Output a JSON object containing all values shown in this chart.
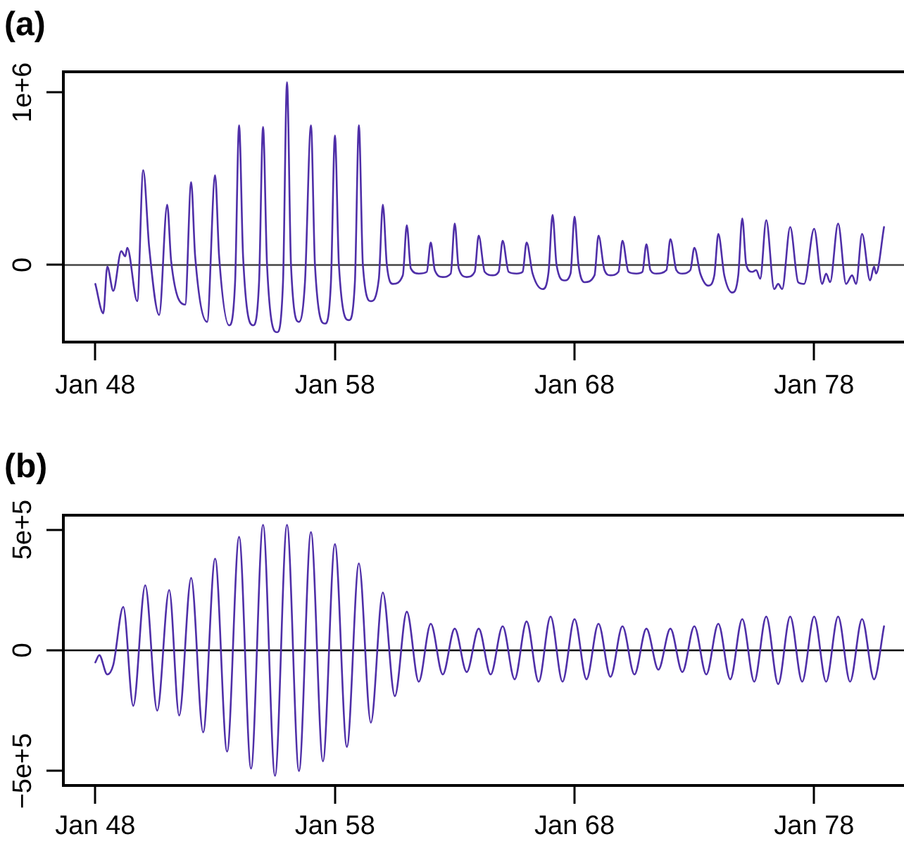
{
  "chart_data": [
    {
      "type": "line",
      "title": "(a)",
      "color": "#4f2fa8",
      "marker": "none",
      "x": [
        "1948-01",
        "1948-05",
        "1948-07",
        "1948-10",
        "1949-02",
        "1949-04",
        "1949-05",
        "1949-10",
        "1950-01",
        "1950-04",
        "1950-09",
        "1951-01",
        "1951-03",
        "1951-10",
        "1952-01",
        "1952-03",
        "1952-09",
        "1953-01",
        "1953-03",
        "1953-08",
        "1953-11",
        "1954-01",
        "1954-03",
        "1954-08",
        "1954-11",
        "1955-01",
        "1955-03",
        "1955-08",
        "1955-11",
        "1956-01",
        "1956-03",
        "1956-07",
        "1956-10",
        "1957-01",
        "1957-03",
        "1957-08",
        "1957-11",
        "1958-01",
        "1958-03",
        "1958-08",
        "1958-11",
        "1959-01",
        "1959-03",
        "1959-07",
        "1959-11",
        "1960-01",
        "1960-03",
        "1960-06",
        "1960-11",
        "1961-01",
        "1961-03",
        "1961-07",
        "1961-11",
        "1962-01",
        "1962-03",
        "1962-07",
        "1962-11",
        "1963-01",
        "1963-03",
        "1963-07",
        "1963-11",
        "1964-01",
        "1964-04",
        "1964-08",
        "1964-11",
        "1965-01",
        "1965-04",
        "1965-08",
        "1965-11",
        "1966-01",
        "1966-04",
        "1966-09",
        "1966-12",
        "1967-02",
        "1967-04",
        "1967-08",
        "1967-11",
        "1968-01",
        "1968-03",
        "1968-06",
        "1968-11",
        "1969-01",
        "1969-04",
        "1969-07",
        "1969-11",
        "1970-01",
        "1970-04",
        "1970-08",
        "1970-11",
        "1971-01",
        "1971-03",
        "1971-06",
        "1971-11",
        "1972-01",
        "1972-04",
        "1972-07",
        "1972-11",
        "1973-01",
        "1973-04",
        "1973-08",
        "1973-11",
        "1974-01",
        "1974-04",
        "1974-08",
        "1974-11",
        "1975-01",
        "1975-03",
        "1975-06",
        "1975-08",
        "1975-10",
        "1976-01",
        "1976-05",
        "1976-07",
        "1976-09",
        "1977-01",
        "1977-05",
        "1977-08",
        "1978-01",
        "1978-05",
        "1978-07",
        "1978-09",
        "1979-01",
        "1979-05",
        "1979-08",
        "1979-10",
        "1980-01",
        "1980-05",
        "1980-07",
        "1980-08",
        "1980-12"
      ],
      "values": [
        -110000,
        -280000,
        -10000,
        -150000,
        80000,
        50000,
        100000,
        -210000,
        550000,
        100000,
        -290000,
        350000,
        20000,
        -230000,
        480000,
        50000,
        -330000,
        520000,
        50000,
        -350000,
        -100000,
        810000,
        50000,
        -350000,
        -100000,
        800000,
        0,
        -390000,
        -100000,
        1060000,
        0,
        -330000,
        -100000,
        810000,
        0,
        -340000,
        -100000,
        750000,
        0,
        -320000,
        -100000,
        810000,
        0,
        -210000,
        -80000,
        350000,
        0,
        -110000,
        -60000,
        230000,
        -20000,
        -50000,
        -40000,
        130000,
        -30000,
        -70000,
        -50000,
        240000,
        -20000,
        -70000,
        -40000,
        170000,
        -40000,
        -60000,
        -40000,
        140000,
        -40000,
        -50000,
        -40000,
        130000,
        -50000,
        -140000,
        -40000,
        290000,
        0,
        -90000,
        -50000,
        280000,
        0,
        -100000,
        -60000,
        170000,
        -30000,
        -60000,
        -40000,
        140000,
        -40000,
        -50000,
        -40000,
        120000,
        -30000,
        -50000,
        -30000,
        150000,
        -30000,
        -50000,
        -30000,
        100000,
        -50000,
        -120000,
        -60000,
        180000,
        -60000,
        -160000,
        -60000,
        270000,
        0,
        -40000,
        -30000,
        -80000,
        260000,
        -140000,
        -110000,
        -140000,
        220000,
        -100000,
        -110000,
        210000,
        -110000,
        -50000,
        -100000,
        240000,
        -110000,
        -60000,
        -110000,
        180000,
        -90000,
        -10000,
        -50000,
        220000
      ],
      "xlim": [
        "1946-09",
        "1981-10"
      ],
      "xticks": [
        {
          "value": "1948-01",
          "label": "Jan 48"
        },
        {
          "value": "1958-01",
          "label": "Jan 58"
        },
        {
          "value": "1968-01",
          "label": "Jan 68"
        },
        {
          "value": "1978-01",
          "label": "Jan 78"
        }
      ],
      "ylim": [
        -447000,
        1120000
      ],
      "yticks": [
        0,
        {
          "value": 1000000,
          "label": "1e+6"
        }
      ],
      "ref_lines": [
        {
          "axis": "y",
          "value": 0,
          "color": "#444444"
        }
      ]
    },
    {
      "type": "line",
      "title": "(b)",
      "color": "#4f2fa8",
      "marker": "none",
      "x": [
        "1948-01",
        "1948-03",
        "1948-07",
        "1948-10",
        "1949-03",
        "1949-08",
        "1950-02",
        "1950-08",
        "1951-02",
        "1951-07",
        "1952-01",
        "1952-07",
        "1953-01",
        "1953-07",
        "1954-01",
        "1954-07",
        "1955-01",
        "1955-07",
        "1956-01",
        "1956-07",
        "1957-01",
        "1957-07",
        "1958-01",
        "1958-07",
        "1959-01",
        "1959-07",
        "1960-01",
        "1960-07",
        "1961-01",
        "1961-07",
        "1962-01",
        "1962-07",
        "1963-01",
        "1963-07",
        "1964-01",
        "1964-07",
        "1965-01",
        "1965-07",
        "1966-01",
        "1966-07",
        "1967-01",
        "1967-07",
        "1968-01",
        "1968-07",
        "1969-01",
        "1969-07",
        "1970-01",
        "1970-07",
        "1971-01",
        "1971-07",
        "1972-01",
        "1972-07",
        "1973-01",
        "1973-07",
        "1974-01",
        "1974-07",
        "1975-01",
        "1975-07",
        "1976-01",
        "1976-07",
        "1977-01",
        "1977-07",
        "1978-01",
        "1978-07",
        "1979-01",
        "1979-07",
        "1980-01",
        "1980-07",
        "1980-12"
      ],
      "values": [
        -50000,
        -20000,
        -100000,
        -60000,
        180000,
        -230000,
        270000,
        -250000,
        250000,
        -270000,
        300000,
        -340000,
        380000,
        -420000,
        470000,
        -490000,
        520000,
        -520000,
        520000,
        -500000,
        490000,
        -460000,
        440000,
        -400000,
        360000,
        -300000,
        240000,
        -190000,
        160000,
        -130000,
        110000,
        -100000,
        90000,
        -90000,
        90000,
        -100000,
        100000,
        -120000,
        120000,
        -130000,
        140000,
        -130000,
        130000,
        -120000,
        110000,
        -110000,
        100000,
        -100000,
        90000,
        -80000,
        90000,
        -90000,
        100000,
        -100000,
        110000,
        -120000,
        130000,
        -130000,
        140000,
        -140000,
        140000,
        -130000,
        140000,
        -130000,
        140000,
        -130000,
        130000,
        -120000,
        100000
      ],
      "xlim": [
        "1946-09",
        "1981-10"
      ],
      "xticks": [
        {
          "value": "1948-01",
          "label": "Jan 48"
        },
        {
          "value": "1958-01",
          "label": "Jan 58"
        },
        {
          "value": "1968-01",
          "label": "Jan 68"
        },
        {
          "value": "1978-01",
          "label": "Jan 78"
        }
      ],
      "ylim": [
        -560000,
        560000
      ],
      "yticks": [
        {
          "value": -500000,
          "label": "−5e+5"
        },
        0,
        {
          "value": 500000,
          "label": "5e+5"
        }
      ],
      "ref_lines": [
        {
          "axis": "y",
          "value": 0,
          "color": "#000000"
        }
      ]
    }
  ]
}
